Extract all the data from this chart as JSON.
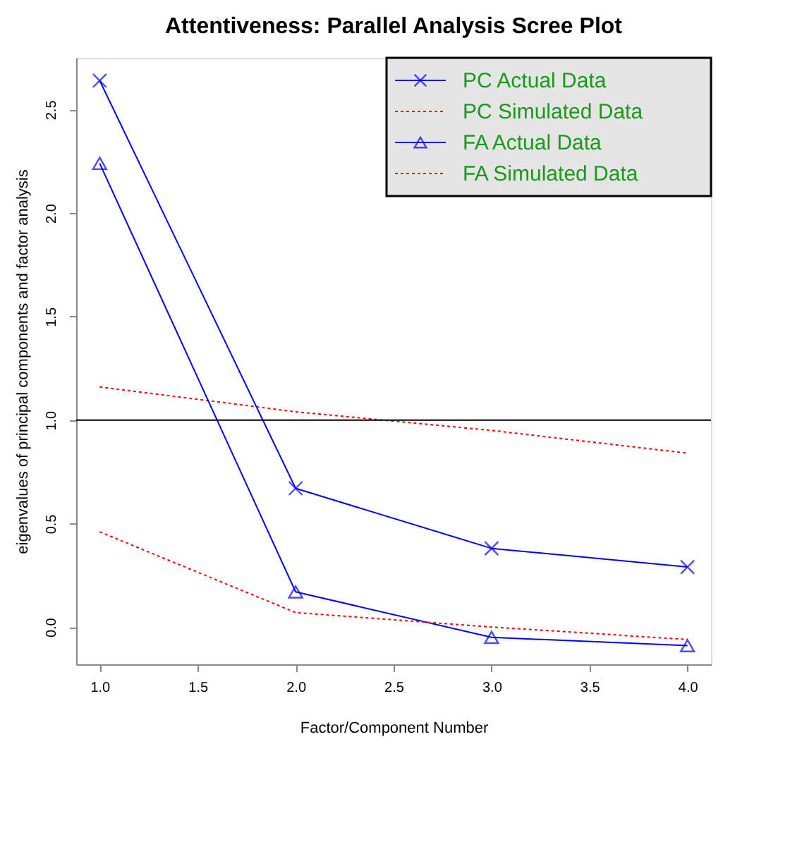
{
  "chart_data": {
    "type": "line",
    "title": "Attentiveness: Parallel Analysis Scree Plot",
    "xlabel": "Factor/Component Number",
    "ylabel": "eigenvalues of principal components and factor analysis",
    "x": [
      1,
      2,
      3,
      4
    ],
    "series": [
      {
        "name": "PC  Actual Data",
        "color": "#0000ff",
        "values": [
          2.64,
          0.67,
          0.38,
          0.29
        ],
        "marker": "cross",
        "line_style": "solid"
      },
      {
        "name": "PC  Simulated Data",
        "color": "#ff0000",
        "values": [
          1.16,
          1.04,
          0.95,
          0.84
        ],
        "marker": "none",
        "line_style": "dotted"
      },
      {
        "name": "FA  Actual Data",
        "color": "#0000ff",
        "values": [
          2.24,
          0.17,
          -0.05,
          -0.09
        ],
        "marker": "triangle",
        "line_style": "solid"
      },
      {
        "name": "FA  Simulated Data",
        "color": "#ff0000",
        "values": [
          0.46,
          0.07,
          0.0,
          -0.06
        ],
        "marker": "none",
        "line_style": "dotted"
      }
    ],
    "xlim": [
      0.88,
      4.12
    ],
    "ylim": [
      -0.18,
      2.75
    ],
    "xticks": [
      {
        "value": 1,
        "label": "1.0"
      },
      {
        "value": 1.5,
        "label": "1.5"
      },
      {
        "value": 2,
        "label": "2.0"
      },
      {
        "value": 2.5,
        "label": "2.5"
      },
      {
        "value": 3,
        "label": "3.0"
      },
      {
        "value": 3.5,
        "label": "3.5"
      },
      {
        "value": 4,
        "label": "4.0"
      }
    ],
    "yticks": [
      {
        "value": 0,
        "label": "0.0"
      },
      {
        "value": 0.5,
        "label": "0.5"
      },
      {
        "value": 1,
        "label": "1.0"
      },
      {
        "value": 1.5,
        "label": "1.5"
      },
      {
        "value": 2,
        "label": "2.0"
      },
      {
        "value": 2.5,
        "label": "2.5"
      }
    ],
    "ref_lines": [
      {
        "axis": "y",
        "value": 1,
        "color": "#000000"
      }
    ],
    "legend": "top right",
    "grid": false
  }
}
